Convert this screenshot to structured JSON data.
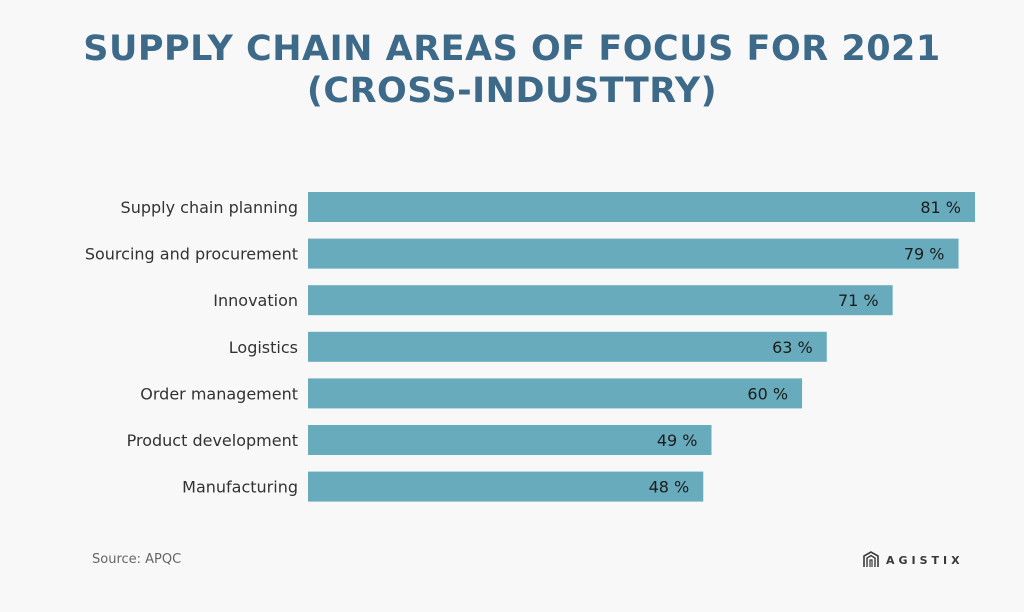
{
  "title_line1": "SUPPLY CHAIN AREAS OF FOCUS FOR 2021",
  "title_line2": "(CROSS-INDUSTTRY)",
  "source": "Source: APQC",
  "logo_text": "AGISTIX",
  "colors": {
    "bar": "#67abbd",
    "title": "#3d6a89"
  },
  "chart_data": {
    "type": "bar",
    "orientation": "horizontal",
    "title": "SUPPLY CHAIN AREAS OF FOCUS FOR 2021 (CROSS-INDUSTTRY)",
    "categories": [
      "Supply chain planning",
      "Sourcing and procurement",
      "Innovation",
      "Logistics",
      "Order management",
      "Product development",
      "Manufacturing"
    ],
    "values": [
      81,
      79,
      71,
      63,
      60,
      49,
      48
    ],
    "value_labels": [
      "81 %",
      "79 %",
      "71 %",
      "63 %",
      "60 %",
      "49 %",
      "48 %"
    ],
    "xlim": [
      0,
      81
    ],
    "grid": false,
    "legend": "none"
  }
}
